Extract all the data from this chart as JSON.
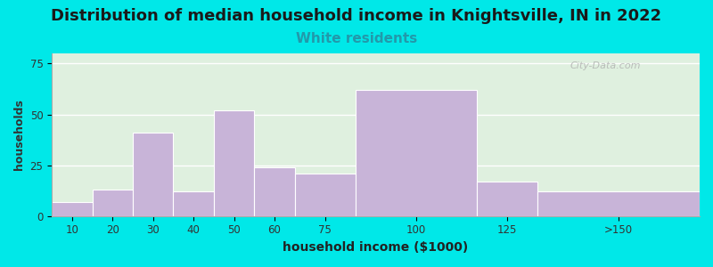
{
  "title": "Distribution of median household income in Knightsville, IN in 2022",
  "subtitle": "White residents",
  "xlabel": "household income ($1000)",
  "ylabel": "households",
  "title_fontsize": 13,
  "subtitle_fontsize": 11,
  "subtitle_color": "#2299aa",
  "bar_color": "#c8b4d8",
  "bar_edge_color": "#ffffff",
  "background_color": "#00e8e8",
  "plot_bg_top": "#dff0df",
  "plot_bg_bottom": "#f5fff5",
  "ylim": [
    0,
    80
  ],
  "yticks": [
    0,
    25,
    50,
    75
  ],
  "categories": [
    "10",
    "20",
    "30",
    "40",
    "50",
    "60",
    "75",
    "100",
    "125",
    ">150"
  ],
  "values": [
    7,
    13,
    41,
    12,
    52,
    24,
    21,
    62,
    17,
    12
  ],
  "bin_edges": [
    5,
    15,
    25,
    35,
    45,
    55,
    65,
    80,
    110,
    125,
    165
  ],
  "watermark_text": "City-Data.com"
}
